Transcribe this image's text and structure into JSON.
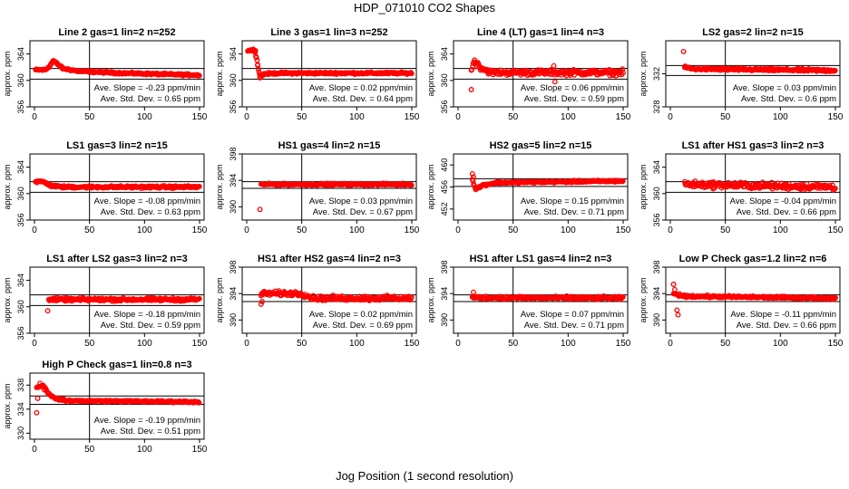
{
  "main_title": "HDP_071010  CO2 Shapes",
  "x_axis_title": "Jog Position (1 second resolution)",
  "y_axis_label": "approx. ppm",
  "slope_prefix": "Ave. Slope =",
  "slope_unit": "ppm/min",
  "std_prefix": "Ave. Std. Dev. =",
  "std_unit": "ppm",
  "colors": {
    "points": "#ff0000",
    "axis": "#000000"
  },
  "chart_data": [
    {
      "type": "scatter",
      "title": "Line 2 gas=1 lin=2 n=252",
      "xlim": [
        0,
        150
      ],
      "x_ticks": [
        0,
        50,
        100,
        150
      ],
      "ylim": [
        356,
        366
      ],
      "y_ticks": [
        356,
        360,
        364
      ],
      "hlines": [
        361.8,
        360.2
      ],
      "vline": 50,
      "slope": "-0.23",
      "std": "0.65",
      "x_start": 1,
      "shape": [
        [
          1,
          361.6
        ],
        [
          10,
          361.6
        ],
        [
          14,
          362.2
        ],
        [
          17,
          363.0
        ],
        [
          20,
          362.6
        ],
        [
          26,
          361.8
        ],
        [
          40,
          361.4
        ],
        [
          80,
          361.1
        ],
        [
          150,
          360.8
        ]
      ],
      "noise": 0.12
    },
    {
      "type": "scatter",
      "title": "Line 3 gas=1 lin=3 n=252",
      "xlim": [
        0,
        150
      ],
      "x_ticks": [
        0,
        50,
        100,
        150
      ],
      "ylim": [
        356,
        366
      ],
      "y_ticks": [
        356,
        360,
        364
      ],
      "hlines": [
        361.8,
        360.2
      ],
      "vline": 50,
      "slope": "0.02",
      "std": "0.64",
      "x_start": 1,
      "shape": [
        [
          1,
          364.5
        ],
        [
          7,
          364.6
        ],
        [
          9,
          363.4
        ],
        [
          11,
          361.3
        ],
        [
          13,
          360.6
        ],
        [
          16,
          361.0
        ],
        [
          30,
          361.1
        ],
        [
          150,
          361.1
        ]
      ],
      "noise": 0.12,
      "outliers": [
        [
          6,
          364.7
        ],
        [
          8,
          364.5
        ],
        [
          10,
          362.4
        ],
        [
          12,
          360.4
        ]
      ]
    },
    {
      "type": "scatter",
      "title": "Line 4 (LT) gas=1 lin=4 n=3",
      "xlim": [
        0,
        150
      ],
      "x_ticks": [
        0,
        50,
        100,
        150
      ],
      "ylim": [
        356,
        366
      ],
      "y_ticks": [
        356,
        360,
        364
      ],
      "hlines": [
        361.8,
        360.2
      ],
      "vline": 50,
      "slope": "0.06",
      "std": "0.59",
      "x_start": 12,
      "shape": [
        [
          12,
          361.6
        ],
        [
          15,
          363.0
        ],
        [
          20,
          362.0
        ],
        [
          30,
          361.2
        ],
        [
          150,
          361.2
        ]
      ],
      "noise": 0.35,
      "outliers": [
        [
          12,
          358.6
        ],
        [
          87,
          362.2
        ],
        [
          88,
          359.8
        ]
      ]
    },
    {
      "type": "scatter",
      "title": "LS2 gas=2 lin=2 n=15",
      "xlim": [
        0,
        150
      ],
      "x_ticks": [
        0,
        50,
        100,
        150
      ],
      "ylim": [
        328,
        336
      ],
      "y_ticks": [
        328,
        332
      ],
      "hlines": [
        333.0,
        331.8
      ],
      "vline": 50,
      "slope": "0.03",
      "std": "0.6",
      "x_start": 13,
      "shape": [
        [
          13,
          332.8
        ],
        [
          20,
          332.6
        ],
        [
          150,
          332.4
        ]
      ],
      "noise": 0.14,
      "outliers": [
        [
          12,
          334.7
        ]
      ]
    },
    {
      "type": "scatter",
      "title": "LS1 gas=3 lin=2 n=15",
      "xlim": [
        0,
        150
      ],
      "x_ticks": [
        0,
        50,
        100,
        150
      ],
      "ylim": [
        356,
        366
      ],
      "y_ticks": [
        356,
        360,
        364
      ],
      "hlines": [
        361.8,
        360.2
      ],
      "vline": 50,
      "slope": "-0.08",
      "std": "0.63",
      "x_start": 1,
      "shape": [
        [
          1,
          361.8
        ],
        [
          8,
          361.8
        ],
        [
          15,
          361.2
        ],
        [
          25,
          361.0
        ],
        [
          150,
          361.0
        ]
      ],
      "noise": 0.15
    },
    {
      "type": "scatter",
      "title": "HS1 gas=4 lin=2 n=15",
      "xlim": [
        0,
        150
      ],
      "x_ticks": [
        0,
        50,
        100,
        150
      ],
      "ylim": [
        388,
        398
      ],
      "y_ticks": [
        390,
        394,
        398
      ],
      "hlines": [
        393.8,
        392.8
      ],
      "vline": 50,
      "slope": "0.03",
      "std": "0.67",
      "x_start": 13,
      "shape": [
        [
          13,
          393.4
        ],
        [
          150,
          393.4
        ]
      ],
      "noise": 0.12,
      "outliers": [
        [
          12,
          389.6
        ]
      ]
    },
    {
      "type": "scatter",
      "title": "HS2 gas=5 lin=2 n=15",
      "xlim": [
        0,
        150
      ],
      "x_ticks": [
        0,
        50,
        100,
        150
      ],
      "ylim": [
        450,
        462
      ],
      "y_ticks": [
        452,
        456,
        460
      ],
      "hlines": [
        457.5,
        456.1
      ],
      "vline": 50,
      "slope": "0.15",
      "std": "0.71",
      "x_start": 13,
      "shape": [
        [
          13,
          457.4
        ],
        [
          16,
          455.6
        ],
        [
          22,
          456.3
        ],
        [
          35,
          456.8
        ],
        [
          150,
          457.1
        ]
      ],
      "noise": 0.15,
      "outliers": [
        [
          13,
          458.4
        ],
        [
          14,
          457.8
        ]
      ]
    },
    {
      "type": "scatter",
      "title": "LS1 after HS1 gas=3 lin=2 n=3",
      "xlim": [
        0,
        150
      ],
      "x_ticks": [
        0,
        50,
        100,
        150
      ],
      "ylim": [
        356,
        366
      ],
      "y_ticks": [
        356,
        360,
        364
      ],
      "hlines": [
        361.8,
        360.2
      ],
      "vline": 50,
      "slope": "-0.04",
      "std": "0.66",
      "x_start": 13,
      "shape": [
        [
          13,
          361.4
        ],
        [
          150,
          361.0
        ]
      ],
      "noise": 0.4
    },
    {
      "type": "scatter",
      "title": "LS1 after LS2 gas=3 lin=2 n=3",
      "xlim": [
        0,
        150
      ],
      "x_ticks": [
        0,
        50,
        100,
        150
      ],
      "ylim": [
        356,
        366
      ],
      "y_ticks": [
        356,
        360,
        364
      ],
      "hlines": [
        361.8,
        360.2
      ],
      "vline": 50,
      "slope": "-0.18",
      "std": "0.59",
      "x_start": 13,
      "shape": [
        [
          13,
          361.1
        ],
        [
          150,
          361.1
        ]
      ],
      "noise": 0.2,
      "outliers": [
        [
          12,
          359.4
        ]
      ]
    },
    {
      "type": "scatter",
      "title": "HS1 after HS2 gas=4 lin=2 n=3",
      "xlim": [
        0,
        150
      ],
      "x_ticks": [
        0,
        50,
        100,
        150
      ],
      "ylim": [
        388,
        398
      ],
      "y_ticks": [
        390,
        394,
        398
      ],
      "hlines": [
        393.8,
        392.8
      ],
      "vline": 50,
      "slope": "0.02",
      "std": "0.69",
      "x_start": 13,
      "shape": [
        [
          13,
          394.0
        ],
        [
          50,
          394.0
        ],
        [
          60,
          393.3
        ],
        [
          150,
          393.3
        ]
      ],
      "noise": 0.3,
      "outliers": [
        [
          13,
          392.4
        ],
        [
          14,
          392.8
        ]
      ]
    },
    {
      "type": "scatter",
      "title": "HS1 after LS1 gas=4 lin=2 n=3",
      "xlim": [
        0,
        150
      ],
      "x_ticks": [
        0,
        50,
        100,
        150
      ],
      "ylim": [
        388,
        398
      ],
      "y_ticks": [
        390,
        394,
        398
      ],
      "hlines": [
        393.8,
        392.8
      ],
      "vline": 50,
      "slope": "0.07",
      "std": "0.71",
      "x_start": 13,
      "shape": [
        [
          13,
          393.4
        ],
        [
          150,
          393.3
        ]
      ],
      "noise": 0.2,
      "outliers": [
        [
          14,
          394.2
        ]
      ]
    },
    {
      "type": "scatter",
      "title": "Low P Check gas=1.2 lin=2 n=6",
      "xlim": [
        0,
        150
      ],
      "x_ticks": [
        0,
        50,
        100,
        150
      ],
      "ylim": [
        388,
        398
      ],
      "y_ticks": [
        390,
        394,
        398
      ],
      "hlines": [
        393.8,
        392.8
      ],
      "vline": 50,
      "slope": "-0.11",
      "std": "0.66",
      "x_start": 3,
      "shape": [
        [
          3,
          394.0
        ],
        [
          12,
          393.6
        ],
        [
          150,
          393.3
        ]
      ],
      "noise": 0.14,
      "outliers": [
        [
          3,
          395.4
        ],
        [
          4,
          394.6
        ],
        [
          6,
          391.5
        ],
        [
          7,
          390.8
        ]
      ]
    },
    {
      "type": "scatter",
      "title": "High P Check gas=1 lin=0.8 n=3",
      "xlim": [
        0,
        150
      ],
      "x_ticks": [
        0,
        50,
        100,
        150
      ],
      "ylim": [
        329,
        340
      ],
      "y_ticks": [
        330,
        334,
        338
      ],
      "hlines": [
        336.2,
        334.8
      ],
      "vline": 50,
      "slope": "-0.19",
      "std": "0.51",
      "x_start": 2,
      "shape": [
        [
          2,
          337.6
        ],
        [
          8,
          338.0
        ],
        [
          12,
          336.8
        ],
        [
          18,
          335.8
        ],
        [
          30,
          335.4
        ],
        [
          150,
          335.2
        ]
      ],
      "noise": 0.12,
      "outliers": [
        [
          2,
          333.4
        ],
        [
          3,
          335.8
        ],
        [
          5,
          338.3
        ],
        [
          9,
          337.2
        ]
      ]
    }
  ]
}
